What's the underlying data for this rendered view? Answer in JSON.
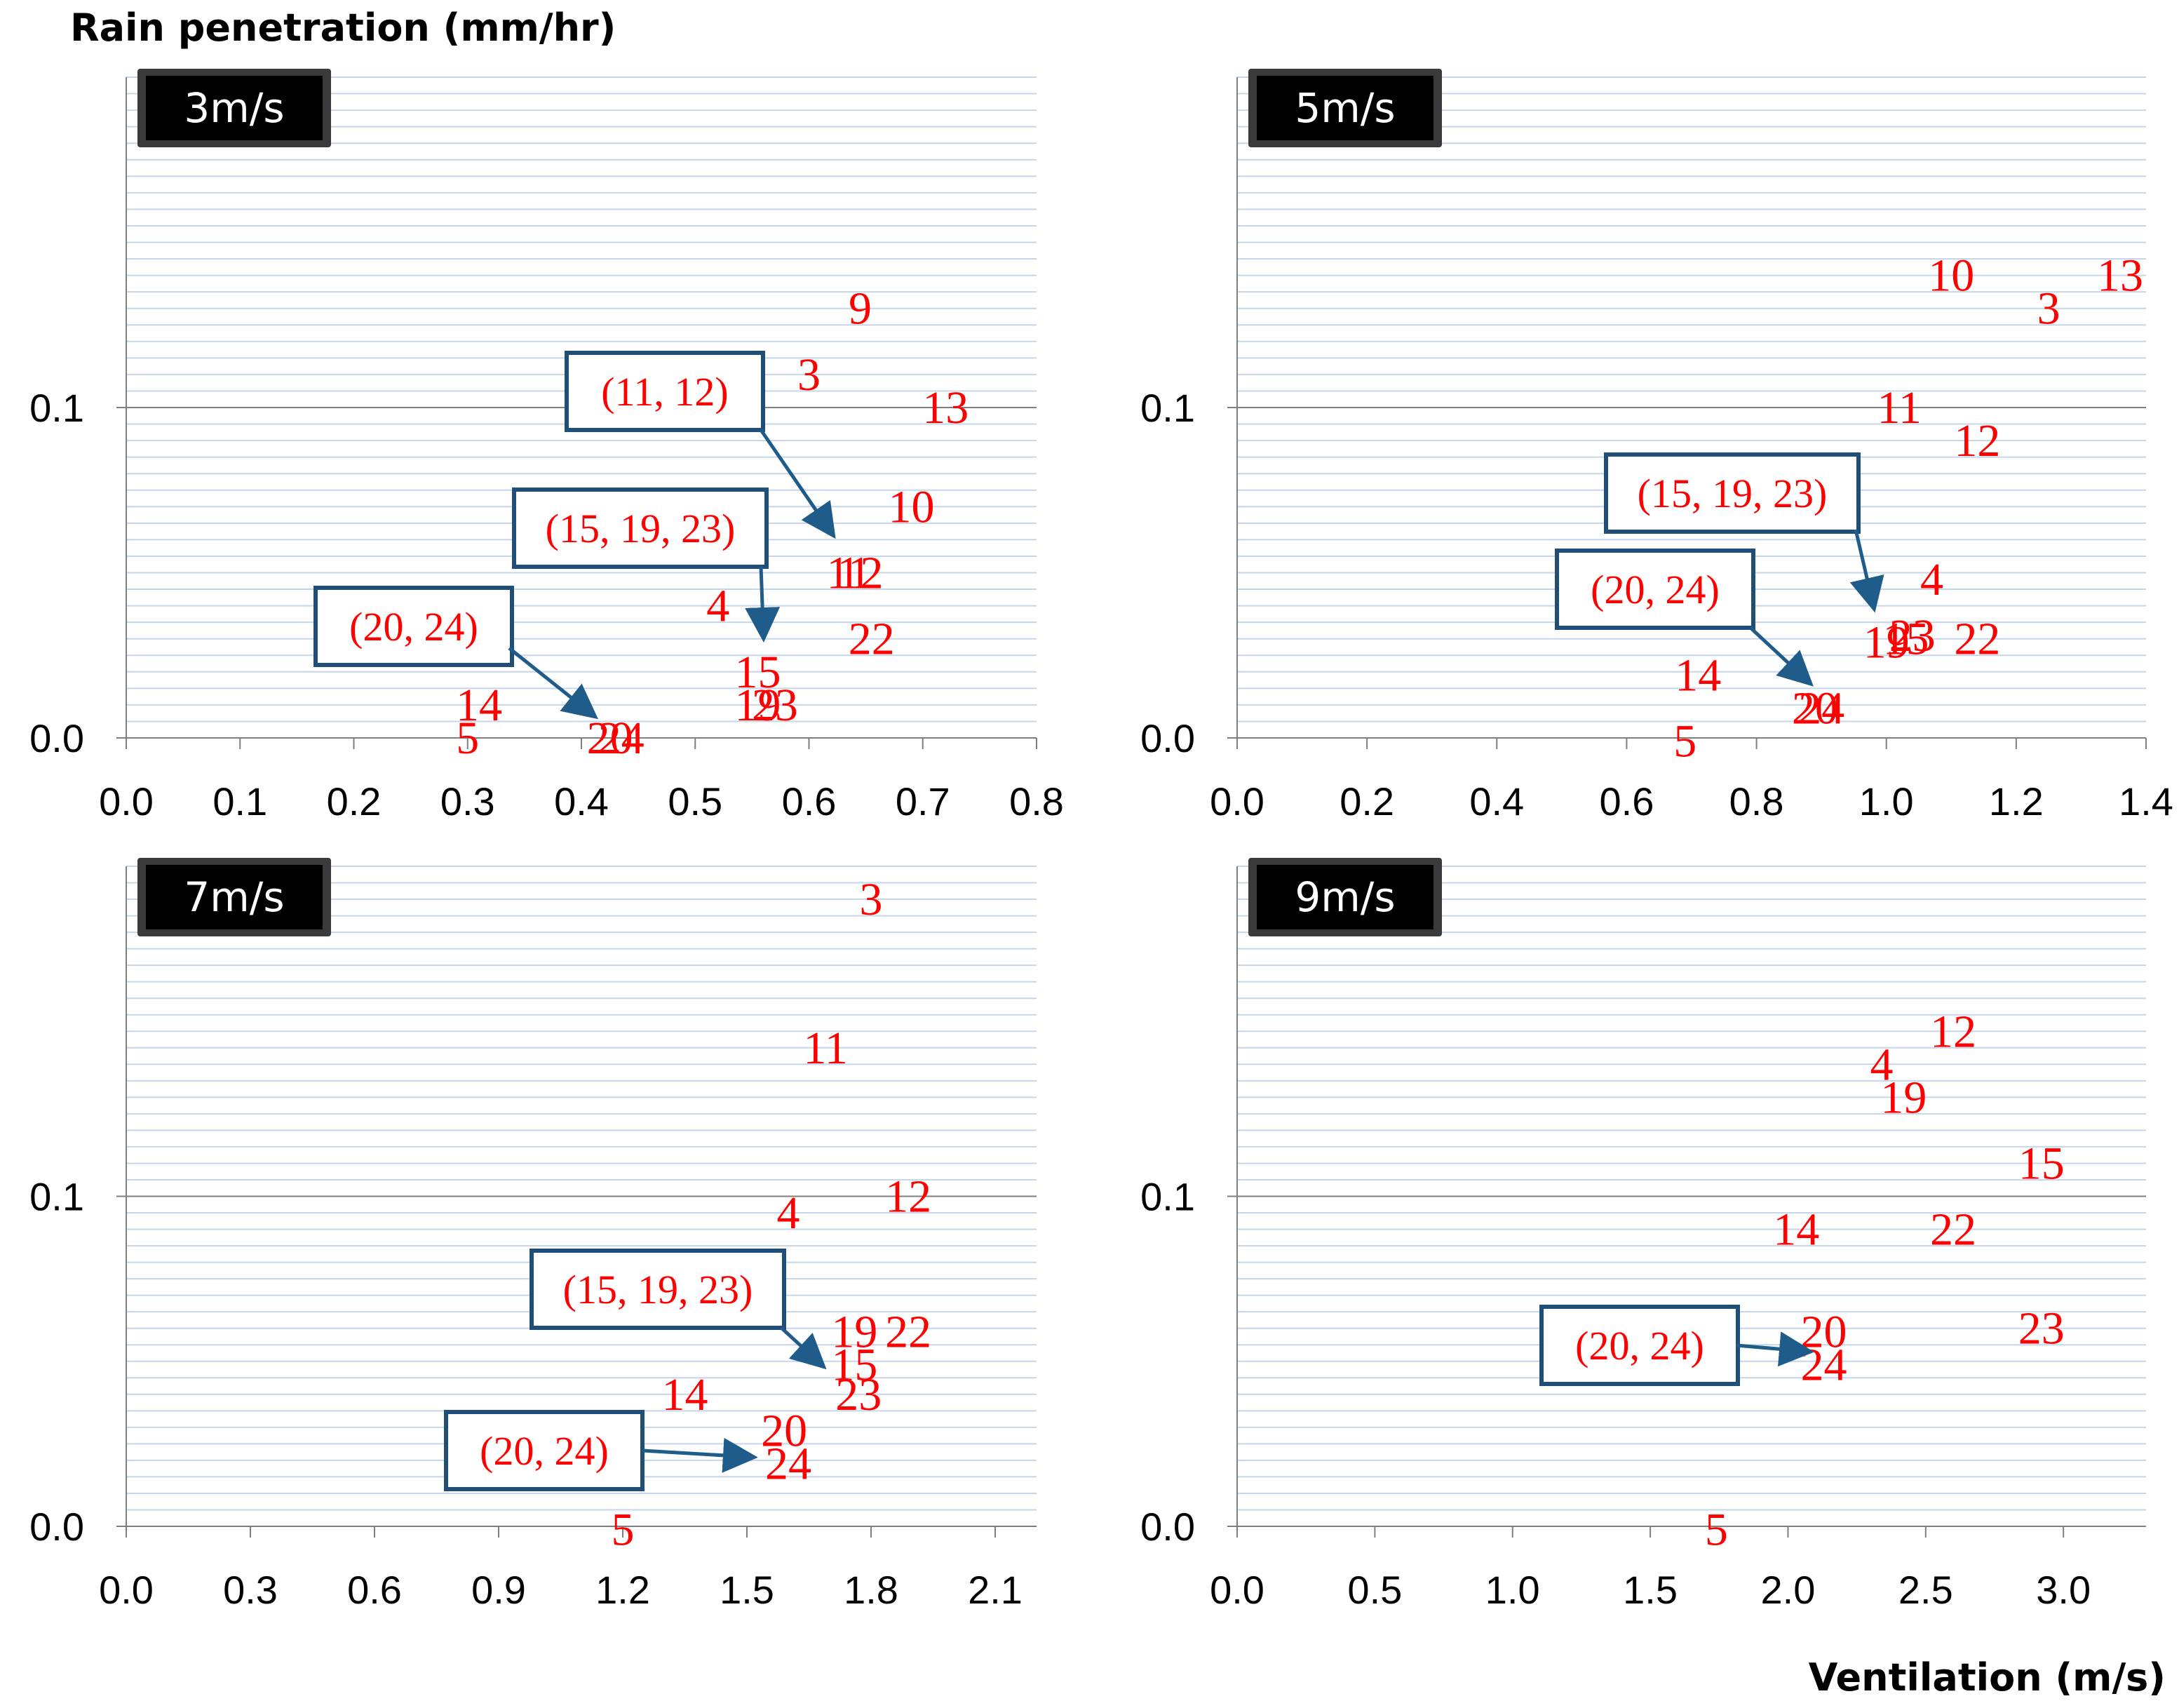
{
  "y_axis_title": "Rain penetration (mm/hr)",
  "x_axis_title": "Ventilation (m/s)",
  "colors": {
    "points": "#ff0000",
    "annotation_border": "#1f4e79",
    "arrow": "#1f5c8a",
    "gridline": "#c5d6ea",
    "major_gridline": "#7f7f7f"
  },
  "chart_data": [
    {
      "type": "scatter",
      "title": "3m/s",
      "xlabel": "Ventilation (m/s)",
      "ylabel": "Rain penetration (mm/hr)",
      "xlim": [
        0,
        0.8
      ],
      "ylim": [
        0,
        0.2
      ],
      "xticks": [
        "0.0",
        "0.1",
        "0.2",
        "0.3",
        "0.4",
        "0.5",
        "0.6",
        "0.7",
        "0.8"
      ],
      "yticks": [
        "0.0",
        "0.1"
      ],
      "points": [
        {
          "label": "9",
          "x": 0.645,
          "y": 0.13
        },
        {
          "label": "3",
          "x": 0.6,
          "y": 0.11
        },
        {
          "label": "13",
          "x": 0.72,
          "y": 0.1
        },
        {
          "label": "10",
          "x": 0.69,
          "y": 0.07
        },
        {
          "label": "11",
          "x": 0.635,
          "y": 0.05
        },
        {
          "label": "12",
          "x": 0.645,
          "y": 0.05
        },
        {
          "label": "4",
          "x": 0.52,
          "y": 0.04
        },
        {
          "label": "22",
          "x": 0.655,
          "y": 0.03
        },
        {
          "label": "15",
          "x": 0.555,
          "y": 0.02
        },
        {
          "label": "19",
          "x": 0.555,
          "y": 0.01
        },
        {
          "label": "23",
          "x": 0.57,
          "y": 0.01
        },
        {
          "label": "14",
          "x": 0.31,
          "y": 0.01
        },
        {
          "label": "5",
          "x": 0.3,
          "y": 0.0
        },
        {
          "label": "20",
          "x": 0.425,
          "y": 0.0
        },
        {
          "label": "24",
          "x": 0.435,
          "y": 0.0
        }
      ],
      "annotations": [
        {
          "text": "(11, 12)",
          "target_x": 0.62,
          "target_y": 0.062
        },
        {
          "text": "(15, 19, 23)",
          "target_x": 0.56,
          "target_y": 0.031
        },
        {
          "text": "(20, 24)",
          "target_x": 0.41,
          "target_y": 0.007
        }
      ]
    },
    {
      "type": "scatter",
      "title": "5m/s",
      "xlabel": "Ventilation (m/s)",
      "ylabel": "Rain penetration (mm/hr)",
      "xlim": [
        0,
        1.4
      ],
      "ylim": [
        0,
        0.2
      ],
      "xticks": [
        "0.0",
        "0.2",
        "0.4",
        "0.6",
        "0.8",
        "1.0",
        "1.2",
        "1.4"
      ],
      "yticks": [
        "0.0",
        "0.1"
      ],
      "points": [
        {
          "label": "13",
          "x": 1.36,
          "y": 0.14
        },
        {
          "label": "10",
          "x": 1.1,
          "y": 0.14
        },
        {
          "label": "3",
          "x": 1.25,
          "y": 0.13
        },
        {
          "label": "11",
          "x": 1.02,
          "y": 0.1
        },
        {
          "label": "12",
          "x": 1.14,
          "y": 0.09
        },
        {
          "label": "4",
          "x": 1.07,
          "y": 0.048
        },
        {
          "label": "19",
          "x": 1.0,
          "y": 0.029
        },
        {
          "label": "15",
          "x": 1.03,
          "y": 0.03
        },
        {
          "label": "23",
          "x": 1.04,
          "y": 0.031
        },
        {
          "label": "22",
          "x": 1.14,
          "y": 0.03
        },
        {
          "label": "14",
          "x": 0.71,
          "y": 0.019
        },
        {
          "label": "20",
          "x": 0.89,
          "y": 0.009
        },
        {
          "label": "24",
          "x": 0.9,
          "y": 0.009
        },
        {
          "label": "5",
          "x": 0.69,
          "y": -0.001
        }
      ],
      "annotations": [
        {
          "text": "(15, 19, 23)",
          "target_x": 0.98,
          "target_y": 0.04
        },
        {
          "text": "(20, 24)",
          "target_x": 0.88,
          "target_y": 0.017
        }
      ]
    },
    {
      "type": "scatter",
      "title": "7m/s",
      "xlabel": "Ventilation (m/s)",
      "ylabel": "Rain penetration (mm/hr)",
      "xlim": [
        0,
        2.2
      ],
      "ylim": [
        0,
        0.2
      ],
      "xticks": [
        "0.0",
        "0.3",
        "0.6",
        "0.9",
        "1.2",
        "1.5",
        "1.8",
        "2.1"
      ],
      "yticks": [
        "0.0",
        "0.1"
      ],
      "points": [
        {
          "label": "3",
          "x": 1.8,
          "y": 0.19
        },
        {
          "label": "11",
          "x": 1.69,
          "y": 0.145
        },
        {
          "label": "4",
          "x": 1.6,
          "y": 0.095
        },
        {
          "label": "12",
          "x": 1.89,
          "y": 0.1
        },
        {
          "label": "19",
          "x": 1.76,
          "y": 0.059
        },
        {
          "label": "22",
          "x": 1.89,
          "y": 0.059
        },
        {
          "label": "15",
          "x": 1.76,
          "y": 0.049
        },
        {
          "label": "23",
          "x": 1.77,
          "y": 0.04
        },
        {
          "label": "14",
          "x": 1.35,
          "y": 0.04
        },
        {
          "label": "20",
          "x": 1.59,
          "y": 0.029
        },
        {
          "label": "24",
          "x": 1.6,
          "y": 0.019
        },
        {
          "label": "5",
          "x": 1.2,
          "y": -0.001
        }
      ],
      "annotations": [
        {
          "text": "(15, 19, 23)",
          "target_x": 1.68,
          "target_y": 0.049
        },
        {
          "text": "(20, 24)",
          "target_x": 1.51,
          "target_y": 0.021
        }
      ]
    },
    {
      "type": "scatter",
      "title": "9m/s",
      "xlabel": "Ventilation (m/s)",
      "ylabel": "Rain penetration (mm/hr)",
      "xlim": [
        0,
        3.3
      ],
      "ylim": [
        0,
        0.2
      ],
      "xticks": [
        "0.0",
        "0.5",
        "1.0",
        "1.5",
        "2.0",
        "2.5",
        "3.0"
      ],
      "yticks": [
        "0.0",
        "0.1"
      ],
      "points": [
        {
          "label": "12",
          "x": 2.6,
          "y": 0.15
        },
        {
          "label": "4",
          "x": 2.34,
          "y": 0.14
        },
        {
          "label": "19",
          "x": 2.42,
          "y": 0.13
        },
        {
          "label": "15",
          "x": 2.92,
          "y": 0.11
        },
        {
          "label": "14",
          "x": 2.03,
          "y": 0.09
        },
        {
          "label": "22",
          "x": 2.6,
          "y": 0.09
        },
        {
          "label": "20",
          "x": 2.13,
          "y": 0.059
        },
        {
          "label": "24",
          "x": 2.13,
          "y": 0.049
        },
        {
          "label": "23",
          "x": 2.92,
          "y": 0.06
        },
        {
          "label": "5",
          "x": 1.74,
          "y": -0.001
        }
      ],
      "annotations": [
        {
          "text": "(20, 24)",
          "target_x": 2.07,
          "target_y": 0.053
        }
      ]
    }
  ]
}
